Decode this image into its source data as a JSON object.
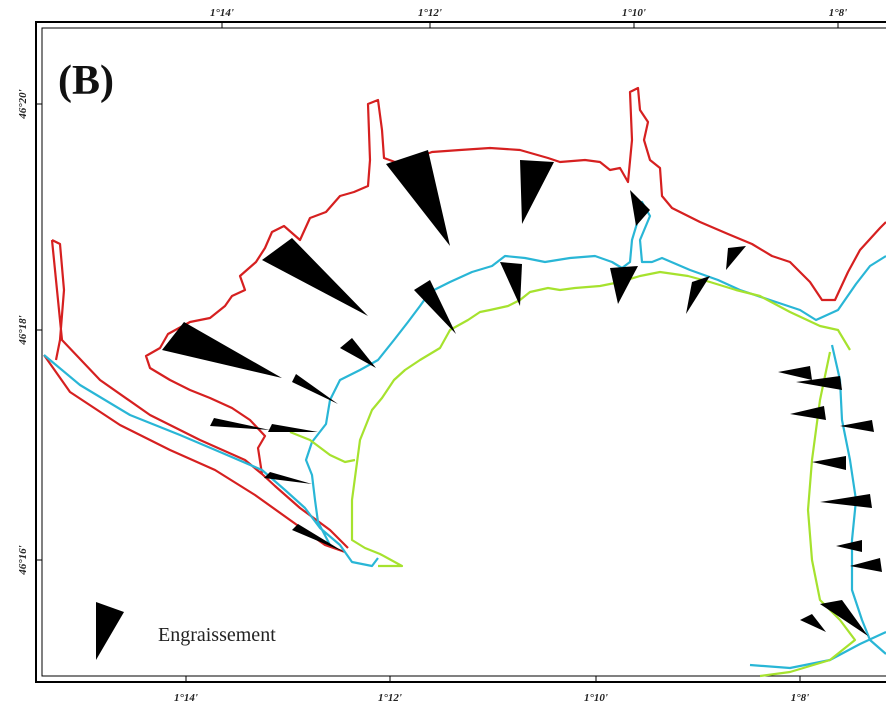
{
  "panel_label": "(B)",
  "top_ticks": [
    "1°14'",
    "1°12'",
    "1°10'",
    "1°8'"
  ],
  "bottom_ticks": [
    "1°14'",
    "1°12'",
    "1°10'",
    "1°8'"
  ],
  "left_ticks": [
    "46°20'",
    "46°18'",
    "46°16'"
  ],
  "legend": {
    "label": "Engraissement",
    "symbol": "black-arrow"
  },
  "colors": {
    "shoreline_red": "#d62020",
    "shoreline_cyan": "#29b6d6",
    "shoreline_green": "#a6e22e",
    "arrows": "#000000",
    "frame": "#000000"
  }
}
